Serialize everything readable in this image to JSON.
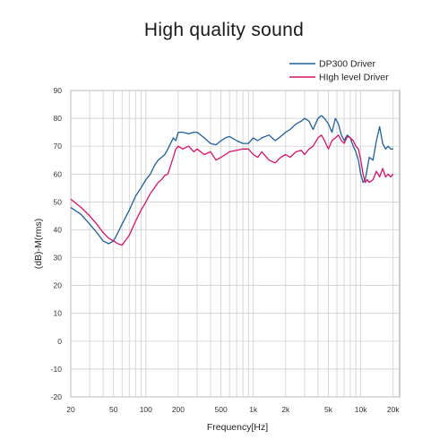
{
  "title": "High quality sound",
  "chart_data": {
    "type": "line",
    "title": "High quality sound",
    "xlabel": "Frequency[Hz]",
    "ylabel": "(dB)-M(rms)",
    "xscale": "log",
    "xlim": [
      20,
      23000
    ],
    "ylim": [
      -20,
      90
    ],
    "grid": true,
    "legend_position": "top-right",
    "x_ticks": [
      {
        "value": 20,
        "label": "20"
      },
      {
        "value": 50,
        "label": "50"
      },
      {
        "value": 100,
        "label": "100"
      },
      {
        "value": 200,
        "label": "200"
      },
      {
        "value": 500,
        "label": "500"
      },
      {
        "value": 1000,
        "label": "1k"
      },
      {
        "value": 2000,
        "label": "2k"
      },
      {
        "value": 5000,
        "label": "5k"
      },
      {
        "value": 10000,
        "label": "10k"
      },
      {
        "value": 20000,
        "label": "20k"
      }
    ],
    "y_ticks": [
      {
        "value": 90,
        "label": "90"
      },
      {
        "value": 80,
        "label": "80"
      },
      {
        "value": 70,
        "label": "70"
      },
      {
        "value": 60,
        "label": "60"
      },
      {
        "value": 50,
        "label": "50"
      },
      {
        "value": 40,
        "label": "40"
      },
      {
        "value": 30,
        "label": "30"
      },
      {
        "value": 20,
        "label": "20"
      },
      {
        "value": 10,
        "label": "10"
      },
      {
        "value": 0,
        "label": "0"
      },
      {
        "value": -10,
        "label": "-10"
      },
      {
        "value": -20,
        "label": "-20"
      }
    ],
    "series": [
      {
        "name": "DP300 Driver",
        "color": "#1e5f9c",
        "x": [
          20,
          25,
          30,
          35,
          40,
          45,
          50,
          55,
          60,
          70,
          80,
          90,
          100,
          110,
          120,
          130,
          140,
          150,
          160,
          170,
          180,
          190,
          200,
          220,
          250,
          280,
          300,
          350,
          400,
          450,
          500,
          550,
          600,
          700,
          800,
          900,
          1000,
          1100,
          1200,
          1400,
          1600,
          1800,
          2000,
          2200,
          2500,
          2800,
          3000,
          3300,
          3600,
          4000,
          4300,
          4600,
          5000,
          5400,
          5800,
          6200,
          6600,
          7000,
          7500,
          8000,
          8500,
          9000,
          9500,
          10000,
          10500,
          11000,
          11500,
          12000,
          13000,
          14000,
          15000,
          16000,
          17000,
          18000,
          19000,
          20000
        ],
        "values": [
          48,
          45.5,
          42,
          39,
          36,
          35,
          36,
          39,
          42,
          47,
          52,
          55,
          58,
          60,
          63,
          65,
          66,
          67,
          69,
          71,
          73,
          72,
          75,
          75,
          74.5,
          75,
          75,
          73,
          71,
          70.5,
          72,
          73,
          73.5,
          72,
          71,
          71,
          73,
          72,
          73,
          74,
          72,
          73.5,
          75,
          76,
          78,
          79,
          80,
          79,
          76,
          80,
          81,
          80,
          78,
          75,
          80,
          78,
          74,
          72,
          74,
          73,
          70,
          68,
          65,
          60,
          57,
          58,
          62,
          66,
          65,
          72,
          77,
          71,
          69,
          70,
          69,
          69
        ]
      },
      {
        "name": "HIgh level Driver",
        "color": "#d6126b",
        "x": [
          20,
          25,
          30,
          35,
          40,
          45,
          50,
          55,
          60,
          70,
          80,
          90,
          100,
          110,
          120,
          130,
          140,
          150,
          160,
          170,
          180,
          190,
          200,
          220,
          250,
          280,
          300,
          350,
          400,
          450,
          500,
          550,
          600,
          700,
          800,
          900,
          1000,
          1100,
          1200,
          1400,
          1600,
          1800,
          2000,
          2200,
          2500,
          2800,
          3000,
          3300,
          3600,
          4000,
          4300,
          4600,
          5000,
          5400,
          5800,
          6200,
          6600,
          7000,
          7500,
          8000,
          8500,
          9000,
          9500,
          10000,
          10500,
          11000,
          11500,
          12000,
          13000,
          14000,
          15000,
          16000,
          17000,
          18000,
          19000,
          20000
        ],
        "values": [
          51,
          48,
          45,
          42,
          39,
          37,
          36,
          35,
          34.5,
          38,
          43,
          47,
          50,
          53,
          55,
          57,
          58,
          59.5,
          60,
          63,
          66,
          69,
          70,
          69,
          70,
          68,
          69,
          67,
          68,
          65,
          66,
          67,
          68,
          68.5,
          69,
          69,
          67,
          66,
          68,
          65,
          64,
          66,
          67,
          66,
          68,
          68.5,
          67,
          69,
          70,
          73,
          74,
          72,
          69,
          72,
          73,
          74,
          72,
          71,
          73.5,
          73,
          72,
          70,
          69,
          65,
          60,
          57,
          58,
          57,
          58,
          61,
          59,
          62,
          59,
          60,
          59,
          60
        ]
      }
    ]
  }
}
